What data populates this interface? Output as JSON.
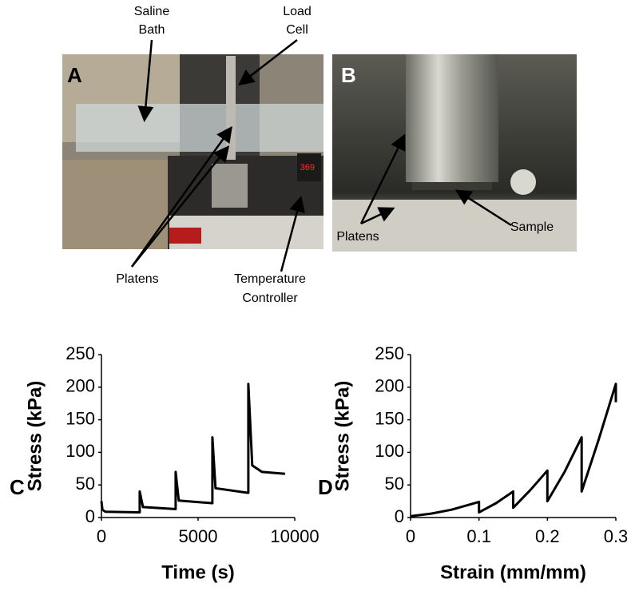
{
  "photos": [
    {
      "panel": "A",
      "annotations": [
        [
          "Saline",
          "Bath"
        ],
        [
          "Load",
          "Cell"
        ],
        [
          "Platens"
        ],
        [
          "Temperature",
          "Controller"
        ]
      ]
    },
    {
      "panel": "B",
      "annotations": [
        [
          "Platens"
        ],
        [
          "Sample"
        ]
      ]
    }
  ],
  "chart_data": [
    {
      "type": "line",
      "panel": "C",
      "x_label": "Time (s)",
      "y_label": "Stress (kPa)",
      "color": "#000000",
      "grid": false,
      "x": [
        0,
        50,
        200,
        1900,
        1980,
        1980,
        2150,
        3800,
        3840,
        3840,
        4000,
        5700,
        5740,
        5740,
        5900,
        7550,
        7600,
        7600,
        7800,
        8300,
        9500
      ],
      "values": [
        25,
        12,
        9,
        8,
        8,
        40,
        16,
        13,
        13,
        70,
        26,
        22,
        22,
        123,
        45,
        38,
        38,
        205,
        80,
        70,
        67
      ],
      "xlim": [
        0,
        10000
      ],
      "ylim": [
        0,
        250
      ],
      "xticks": [
        0,
        5000,
        10000
      ],
      "yticks": [
        0,
        50,
        100,
        150,
        200,
        250
      ]
    },
    {
      "type": "line",
      "panel": "D",
      "x_label": "Strain (mm/mm)",
      "y_label": "Stress (kPa)",
      "color": "#000000",
      "grid": false,
      "x": [
        0,
        0.03,
        0.06,
        0.1,
        0.1,
        0.125,
        0.15,
        0.15,
        0.175,
        0.2,
        0.2,
        0.225,
        0.25,
        0.25,
        0.275,
        0.3,
        0.3
      ],
      "values": [
        2,
        6,
        12,
        24,
        8,
        22,
        40,
        15,
        42,
        72,
        25,
        70,
        123,
        40,
        120,
        205,
        177
      ],
      "xlim": [
        0,
        0.3
      ],
      "ylim": [
        0,
        250
      ],
      "xticks": [
        0,
        0.1,
        0.2,
        0.3
      ],
      "yticks": [
        0,
        50,
        100,
        150,
        200,
        250
      ]
    }
  ]
}
